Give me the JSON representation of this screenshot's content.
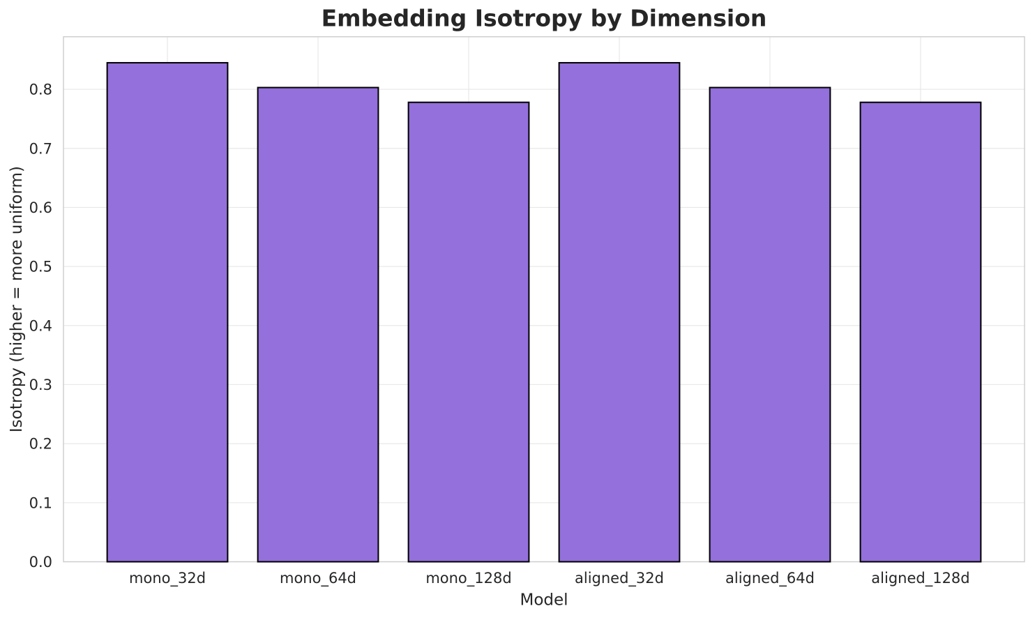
{
  "figure": {
    "background": "#ffffff"
  },
  "chart_data": {
    "type": "bar",
    "title": "Embedding Isotropy by Dimension",
    "xlabel": "Model",
    "ylabel": "Isotropy (higher = more uniform)",
    "categories": [
      "mono_32d",
      "mono_64d",
      "mono_128d",
      "aligned_32d",
      "aligned_64d",
      "aligned_128d"
    ],
    "values": [
      0.845,
      0.803,
      0.778,
      0.845,
      0.803,
      0.778
    ],
    "ylim": [
      0,
      0.889
    ],
    "xlim": [
      -0.69,
      5.69
    ],
    "yticks": [
      0.0,
      0.1,
      0.2,
      0.3,
      0.4,
      0.5,
      0.6,
      0.7,
      0.8
    ],
    "ytick_labels": [
      "0.0",
      "0.1",
      "0.2",
      "0.3",
      "0.4",
      "0.5",
      "0.6",
      "0.7",
      "0.8"
    ],
    "bar_width": 0.8,
    "grid": true,
    "legend": false,
    "colors": {
      "bar_fill": "#9370DB",
      "bar_edge": "#000000",
      "grid_line": "#e8e8e8",
      "spine": "#cccccc",
      "text": "#262626"
    }
  }
}
